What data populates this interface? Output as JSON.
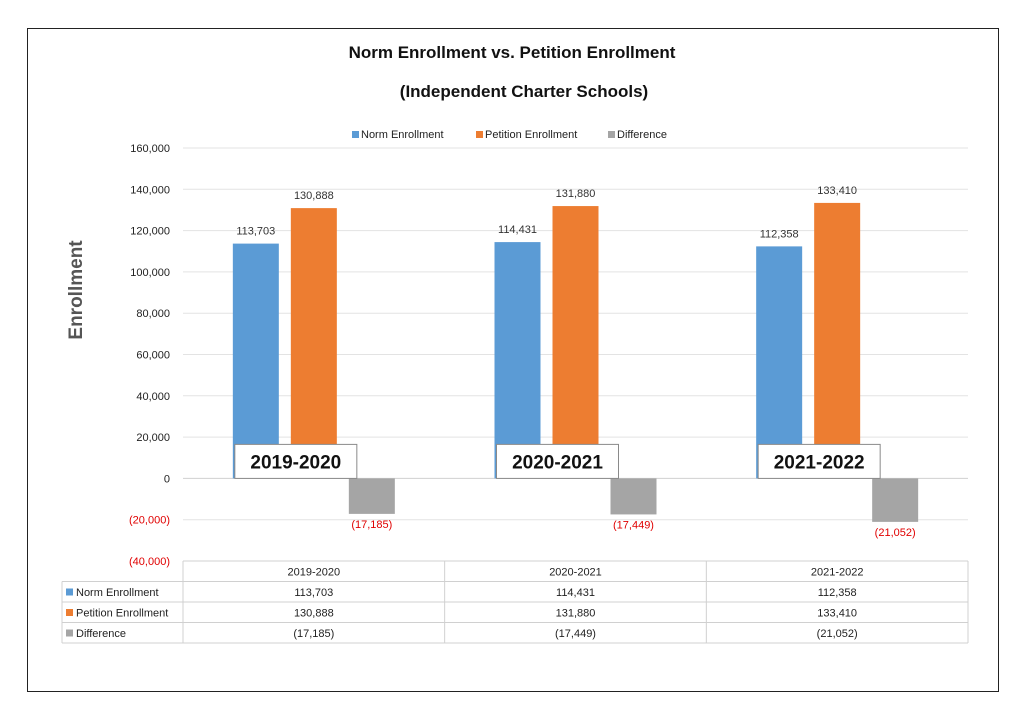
{
  "chart_data": {
    "type": "bar",
    "title": "Norm Enrollment vs. Petition Enrollment",
    "subtitle": "(Independent Charter Schools)",
    "ylabel": "Enrollment",
    "xlabel": "",
    "ylim": [
      -40000,
      160000
    ],
    "yticks": [
      160000,
      140000,
      120000,
      100000,
      80000,
      60000,
      40000,
      20000,
      0,
      -20000,
      -40000
    ],
    "ytick_labels": [
      "160,000",
      "140,000",
      "120,000",
      "100,000",
      "80,000",
      "60,000",
      "40,000",
      "20,000",
      "0",
      "(20,000)",
      "(40,000)"
    ],
    "grid": true,
    "legend_position": "top",
    "categories": [
      "2019-2020",
      "2020-2021",
      "2021-2022"
    ],
    "series": [
      {
        "name": "Norm Enrollment",
        "color": "#5b9bd5",
        "values": [
          113703,
          114431,
          112358
        ],
        "labels": [
          "113,703",
          "114,431",
          "112,358"
        ]
      },
      {
        "name": "Petition Enrollment",
        "color": "#ed7d31",
        "values": [
          130888,
          131880,
          133410
        ],
        "labels": [
          "130,888",
          "131,880",
          "133,410"
        ]
      },
      {
        "name": "Difference",
        "color": "#a5a5a5",
        "values": [
          -17185,
          -17449,
          -21052
        ],
        "labels": [
          "(17,185)",
          "(17,449)",
          "(21,052)"
        ]
      }
    ],
    "annotations": [
      "2019-2020",
      "2020-2021",
      "2021-2022"
    ],
    "data_table": true
  }
}
